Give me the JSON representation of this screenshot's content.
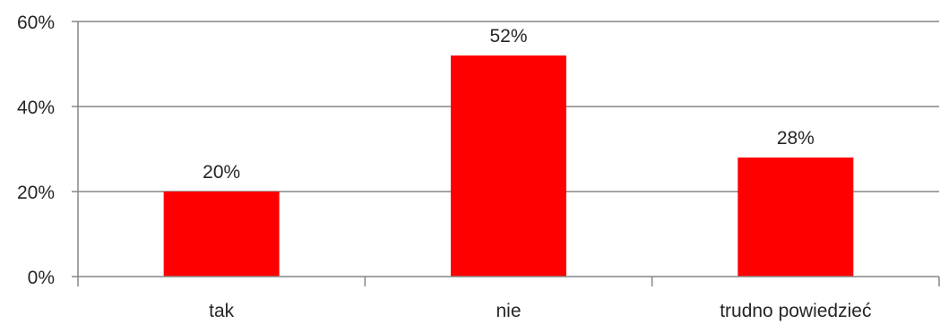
{
  "chart_data": {
    "type": "bar",
    "categories": [
      "tak",
      "nie",
      "trudno powiedzieć"
    ],
    "values": [
      20,
      52,
      28
    ],
    "value_labels": [
      "20%",
      "52%",
      "28%"
    ],
    "ylim": [
      0,
      60
    ],
    "yticks": [
      0,
      20,
      40,
      60
    ],
    "ytick_labels": [
      "0%",
      "20%",
      "40%",
      "60%"
    ],
    "title": "",
    "xlabel": "",
    "ylabel": "",
    "grid": true,
    "legend": "none",
    "bar_color": "#ff0000",
    "axis_color": "#868686",
    "grid_color": "#868686"
  }
}
